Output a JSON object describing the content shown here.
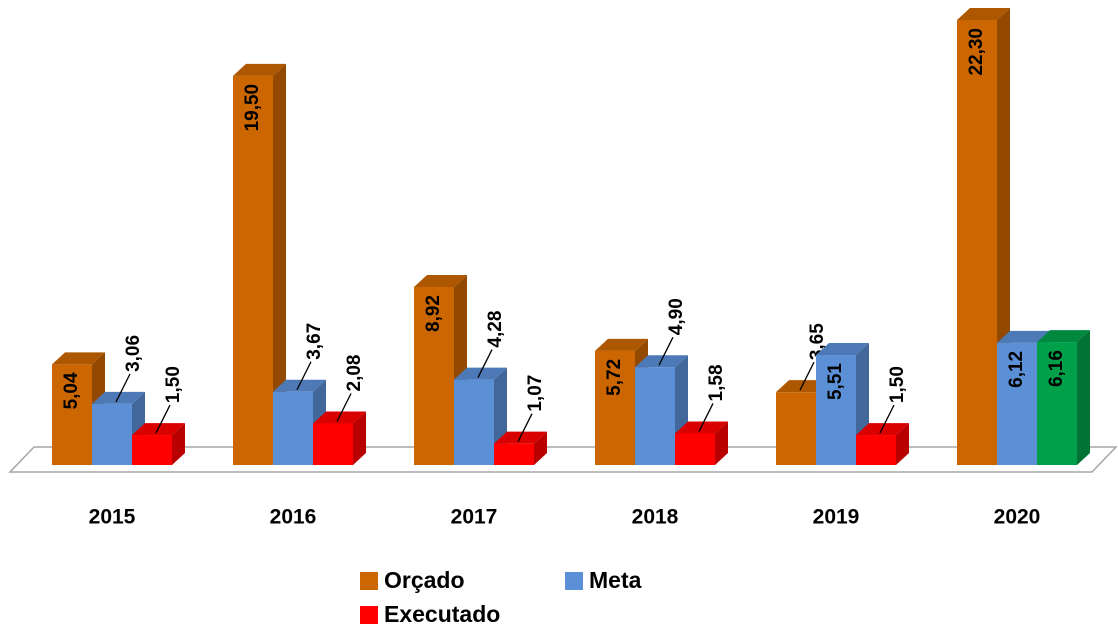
{
  "chart_data": {
    "type": "bar3d",
    "categories": [
      "2015",
      "2016",
      "2017",
      "2018",
      "2019",
      "2020"
    ],
    "series": [
      {
        "name": "Orçado",
        "color": "#cc6600",
        "values": [
          5.04,
          19.5,
          8.92,
          5.72,
          3.65,
          22.3
        ],
        "value_labels": [
          "5,04",
          "19,50",
          "8,92",
          "5,72",
          "3,65",
          "22,30"
        ]
      },
      {
        "name": "Meta",
        "color": "#5b8fd6",
        "values": [
          3.06,
          3.67,
          4.28,
          4.9,
          5.51,
          6.12
        ],
        "value_labels": [
          "3,06",
          "3,67",
          "4,28",
          "4,90",
          "5,51",
          "6,12"
        ]
      },
      {
        "name": "Executado",
        "color": "#ff0000",
        "colors": [
          "#ff0000",
          "#ff0000",
          "#ff0000",
          "#ff0000",
          "#ff0000",
          "#00a04a"
        ],
        "values": [
          1.5,
          2.08,
          1.07,
          1.58,
          1.5,
          6.16
        ],
        "value_labels": [
          "1,50",
          "2,08",
          "1,07",
          "1,58",
          "1,50",
          "6,16"
        ]
      }
    ]
  }
}
